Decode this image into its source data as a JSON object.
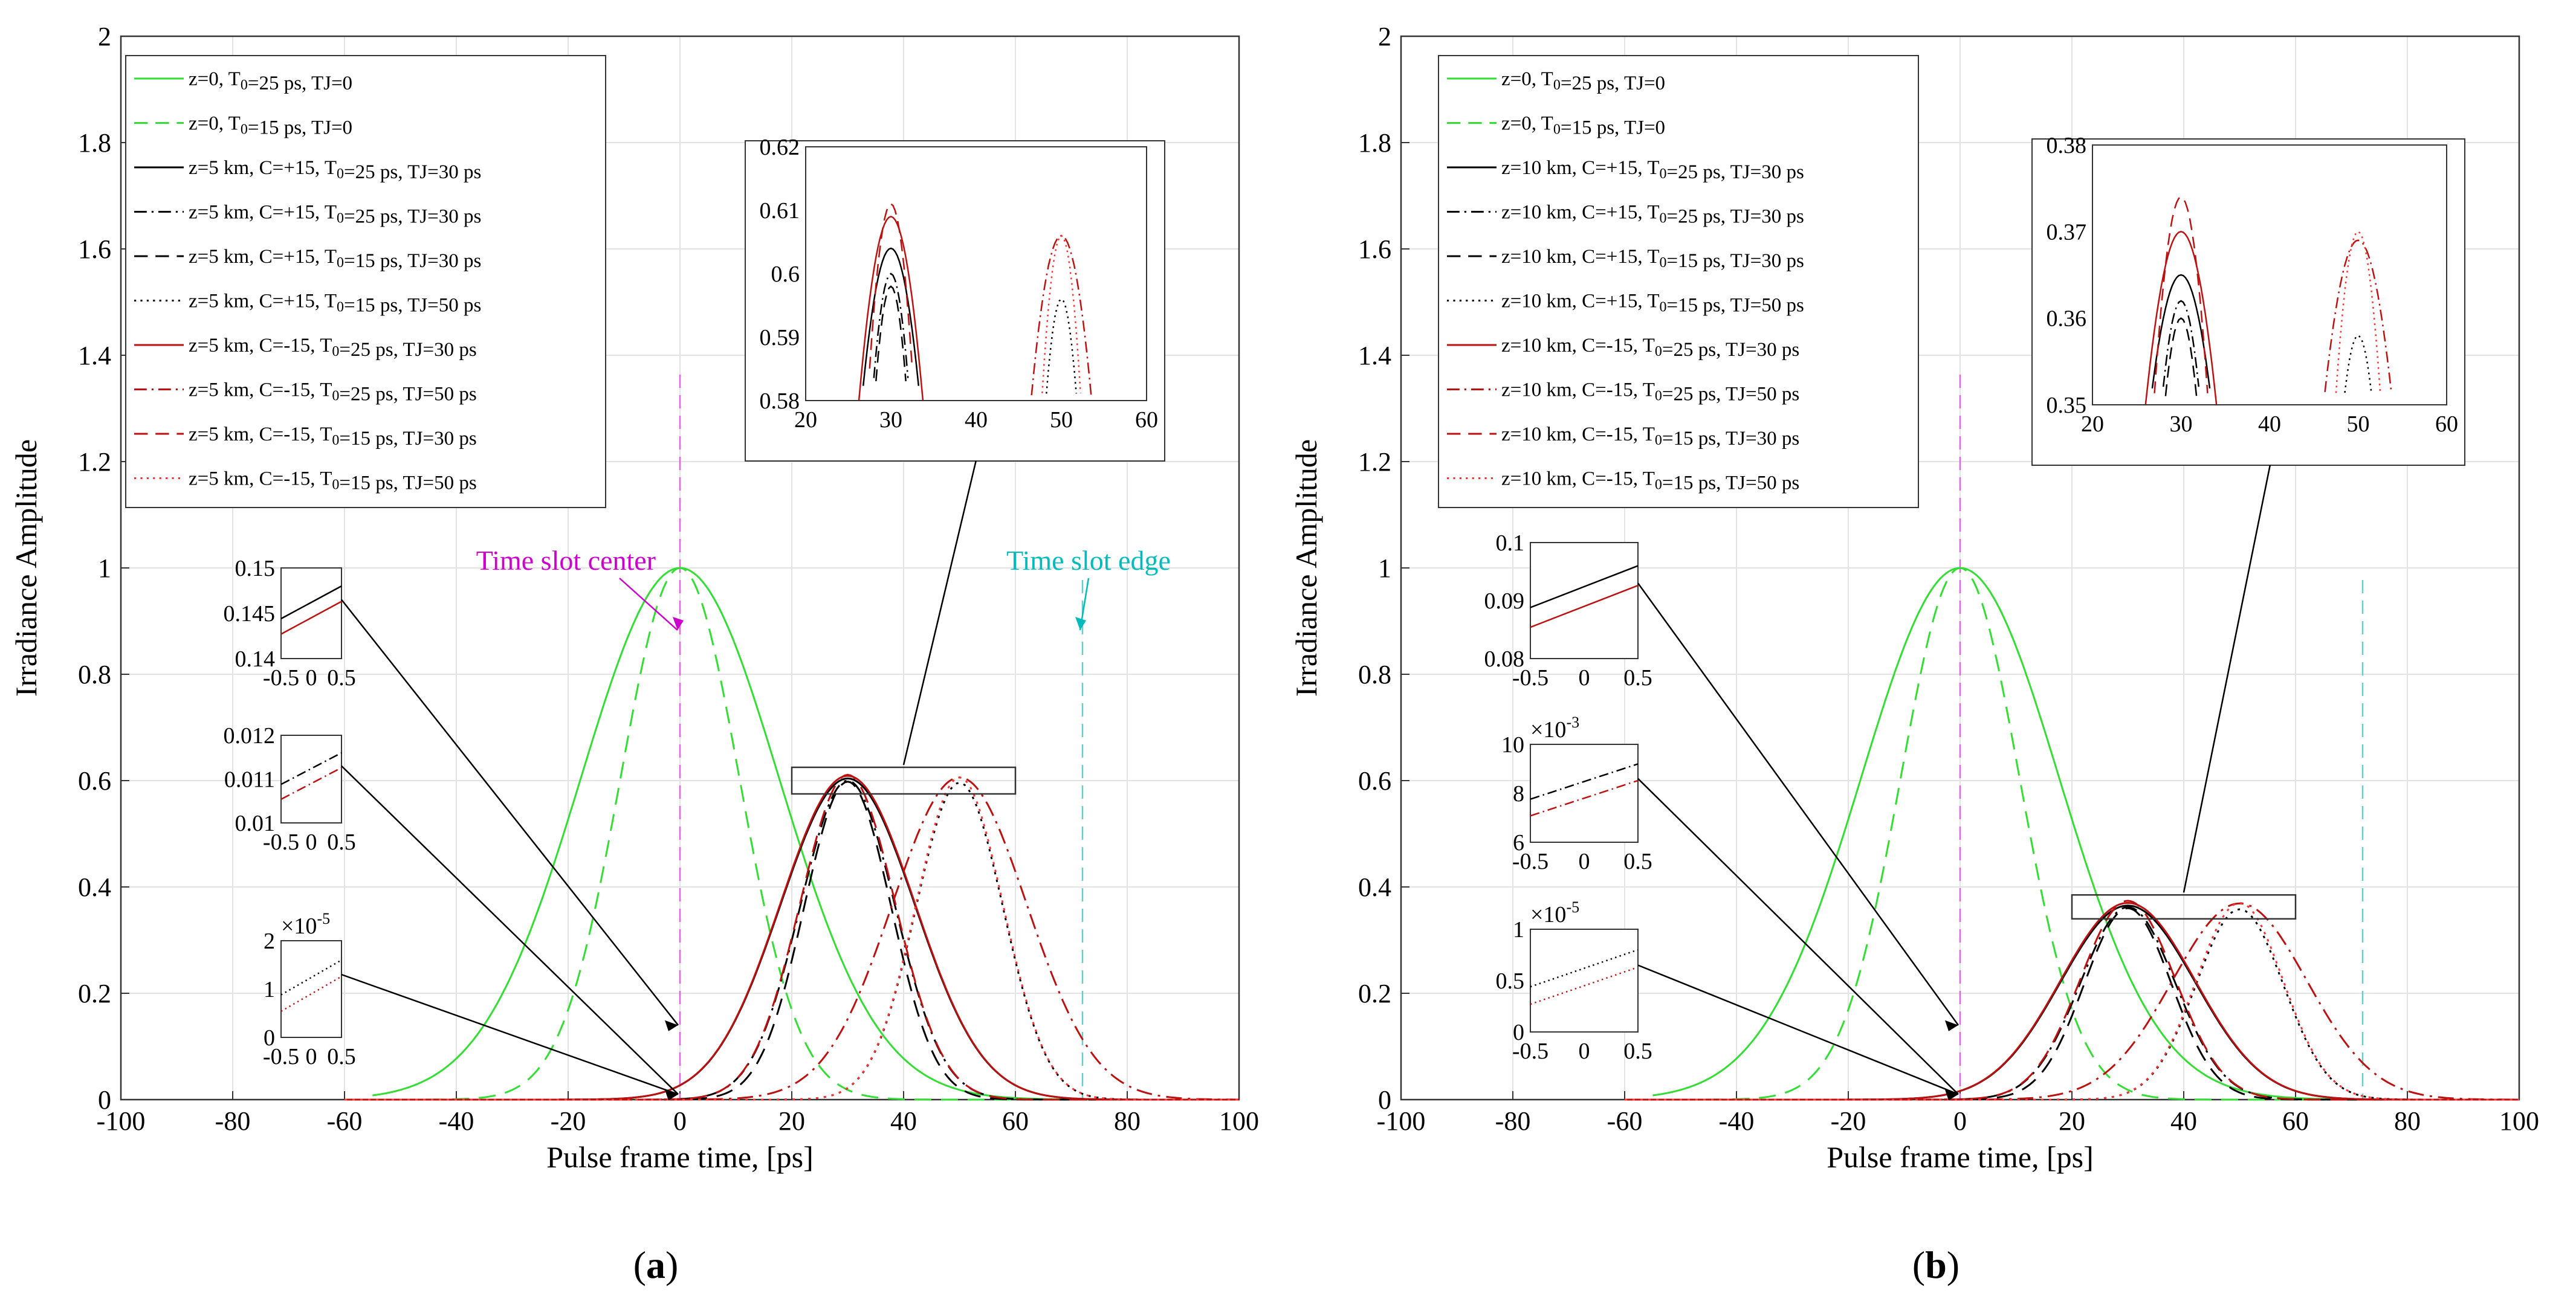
{
  "figure": {
    "captions": [
      "(a)",
      "(b)"
    ]
  },
  "chart_data": [
    {
      "type": "line",
      "panel": "a",
      "caption": "(a)",
      "xlabel": "Pulse frame time, [ps]",
      "ylabel": "Irradiance Amplitude",
      "xlim": [
        -100,
        100
      ],
      "ylim": [
        0,
        2
      ],
      "x_ticks": [
        "-100",
        "-80",
        "-60",
        "-40",
        "-20",
        "0",
        "20",
        "40",
        "60",
        "80",
        "100"
      ],
      "y_ticks": [
        "0",
        "0.2",
        "0.4",
        "0.6",
        "0.8",
        "1",
        "1.2",
        "1.4",
        "1.6",
        "1.8",
        "2"
      ],
      "grid": true,
      "legend_position": "top-left",
      "legend": [
        {
          "text": "z=0, T0=25 ps, TJ=0"
        },
        {
          "text": "z=0, T0=15 ps, TJ=0"
        },
        {
          "text": "z=5 km, C=+15, T0=25 ps, TJ=30 ps"
        },
        {
          "text": "z=5 km, C=+15, T0=25 ps, TJ=30 ps"
        },
        {
          "text": "z=5 km, C=+15, T0=15 ps, TJ=30 ps"
        },
        {
          "text": "z=5 km, C=+15, T0=15 ps, TJ=50 ps"
        },
        {
          "text": "z=5 km, C=-15, T0=25 ps, TJ=30 ps"
        },
        {
          "text": "z=5 km, C=-15, T0=25 ps, TJ=50 ps"
        },
        {
          "text": "z=5 km, C=-15, T0=15 ps, TJ=30 ps"
        },
        {
          "text": "z=5 km, C=-15, T0=15 ps, TJ=50 ps"
        }
      ],
      "series": [
        {
          "name": "z=0, T0=25 ps, TJ=0",
          "color": "#33dd33",
          "dash": "solid",
          "peak": 1.0,
          "center": 0,
          "width": 25,
          "x_min": -55
        },
        {
          "name": "z=0, T0=15 ps, TJ=0",
          "color": "#33dd33",
          "dash": "dash",
          "peak": 1.0,
          "center": 0,
          "width": 15,
          "x_min": -55
        },
        {
          "name": "z=5 km, C=+15, T0=25 ps, TJ=30 ps",
          "color": "#000000",
          "dash": "solid",
          "peak": 0.604,
          "center": 30,
          "width": 17
        },
        {
          "name": "z=5 km, C=+15, T0=25 ps, TJ=30 ps",
          "color": "#000000",
          "dash": "dashdot",
          "peak": 0.6,
          "center": 30,
          "width": 12
        },
        {
          "name": "z=5 km, C=+15, T0=15 ps, TJ=30 ps",
          "color": "#000000",
          "dash": "dash",
          "peak": 0.598,
          "center": 30,
          "width": 11
        },
        {
          "name": "z=5 km, C=+15, T0=15 ps, TJ=50 ps",
          "color": "#000000",
          "dash": "dot",
          "peak": 0.596,
          "center": 50,
          "width": 11
        },
        {
          "name": "z=5 km, C=-15, T0=25 ps, TJ=30 ps",
          "color": "#bb1111",
          "dash": "solid",
          "peak": 0.609,
          "center": 30,
          "width": 17
        },
        {
          "name": "z=5 km, C=-15, T0=25 ps, TJ=50 ps",
          "color": "#bb1111",
          "dash": "dashdot",
          "peak": 0.606,
          "center": 50,
          "width": 17
        },
        {
          "name": "z=5 km, C=-15, T0=15 ps, TJ=30 ps",
          "color": "#bb1111",
          "dash": "dash",
          "peak": 0.611,
          "center": 30,
          "width": 12
        },
        {
          "name": "z=5 km, C=-15, T0=15 ps, TJ=50 ps",
          "color": "#ff3333",
          "dash": "dot",
          "peak": 0.606,
          "center": 50,
          "width": 11
        }
      ],
      "annotations": [
        {
          "text": "Time slot center",
          "color": "#cc00cc",
          "x": 0
        },
        {
          "text": "Time slot edge",
          "color": "#00bbbb",
          "x": 72
        }
      ],
      "insets": [
        {
          "name": "zoom-top",
          "xlim": [
            20,
            60
          ],
          "ylim": [
            0.58,
            0.62
          ],
          "x_ticks": [
            "20",
            "30",
            "40",
            "50",
            "60"
          ],
          "y_ticks": [
            "0.58",
            "0.59",
            "0.6",
            "0.61",
            "0.62"
          ]
        },
        {
          "name": "zoom-1",
          "xlim": [
            -0.5,
            0.5
          ],
          "ylim": [
            0.14,
            0.15
          ],
          "x_ticks": [
            "-0.5",
            "0",
            "0.5"
          ],
          "y_ticks": [
            "0.14",
            "0.145",
            "0.15"
          ]
        },
        {
          "name": "zoom-2",
          "xlim": [
            -0.5,
            0.5
          ],
          "ylim": [
            0.01,
            0.012
          ],
          "x_ticks": [
            "-0.5",
            "0",
            "0.5"
          ],
          "y_ticks": [
            "0.01",
            "0.011",
            "0.012"
          ]
        },
        {
          "name": "zoom-3",
          "xlim": [
            -0.5,
            0.5
          ],
          "ylim": [
            0,
            2
          ],
          "x_ticks": [
            "-0.5",
            "0",
            "0.5"
          ],
          "y_ticks": [
            "0",
            "1",
            "2"
          ],
          "multiplier": "×10",
          "multiplier_exp": "-5"
        }
      ]
    },
    {
      "type": "line",
      "panel": "b",
      "caption": "(b)",
      "xlabel": "Pulse frame time, [ps]",
      "ylabel": "Irradiance Amplitude",
      "xlim": [
        -100,
        100
      ],
      "ylim": [
        0,
        2
      ],
      "x_ticks": [
        "-100",
        "-80",
        "-60",
        "-40",
        "-20",
        "0",
        "20",
        "40",
        "60",
        "80",
        "100"
      ],
      "y_ticks": [
        "0",
        "0.2",
        "0.4",
        "0.6",
        "0.8",
        "1",
        "1.2",
        "1.4",
        "1.6",
        "1.8",
        "2"
      ],
      "grid": true,
      "legend_position": "top-left",
      "legend": [
        {
          "text": "z=0, T0=25 ps, TJ=0"
        },
        {
          "text": "z=0, T0=15 ps, TJ=0"
        },
        {
          "text": "z=10 km, C=+15, T0=25 ps, TJ=30 ps"
        },
        {
          "text": "z=10 km, C=+15, T0=25 ps, TJ=30 ps"
        },
        {
          "text": "z=10 km, C=+15, T0=15 ps, TJ=30 ps"
        },
        {
          "text": "z=10 km, C=+15, T0=15 ps, TJ=50 ps"
        },
        {
          "text": "z=10 km, C=-15, T0=25 ps, TJ=30 ps"
        },
        {
          "text": "z=10 km, C=-15, T0=25 ps, TJ=50 ps"
        },
        {
          "text": "z=10 km, C=-15, T0=15 ps, TJ=30 ps"
        },
        {
          "text": "z=10 km, C=-15, T0=15 ps, TJ=50 ps"
        }
      ],
      "series": [
        {
          "name": "z=0, T0=25 ps, TJ=0",
          "color": "#33dd33",
          "dash": "solid",
          "peak": 1.0,
          "center": 0,
          "width": 25,
          "x_min": -55
        },
        {
          "name": "z=0, T0=15 ps, TJ=0",
          "color": "#33dd33",
          "dash": "dash",
          "peak": 1.0,
          "center": 0,
          "width": 15,
          "x_min": -55
        },
        {
          "name": "z=10 km, C=+15, T0=25 ps, TJ=30 ps",
          "color": "#000000",
          "dash": "solid",
          "peak": 0.365,
          "center": 30,
          "width": 17
        },
        {
          "name": "z=10 km, C=+15, T0=25 ps, TJ=30 ps",
          "color": "#000000",
          "dash": "dashdot",
          "peak": 0.362,
          "center": 30,
          "width": 12
        },
        {
          "name": "z=10 km, C=+15, T0=15 ps, TJ=30 ps",
          "color": "#000000",
          "dash": "dash",
          "peak": 0.36,
          "center": 30,
          "width": 11
        },
        {
          "name": "z=10 km, C=+15, T0=15 ps, TJ=50 ps",
          "color": "#000000",
          "dash": "dot",
          "peak": 0.358,
          "center": 50,
          "width": 11
        },
        {
          "name": "z=10 km, C=-15, T0=25 ps, TJ=30 ps",
          "color": "#bb1111",
          "dash": "solid",
          "peak": 0.37,
          "center": 30,
          "width": 17
        },
        {
          "name": "z=10 km, C=-15, T0=25 ps, TJ=50 ps",
          "color": "#bb1111",
          "dash": "dashdot",
          "peak": 0.369,
          "center": 50,
          "width": 17
        },
        {
          "name": "z=10 km, C=-15, T0=15 ps, TJ=30 ps",
          "color": "#bb1111",
          "dash": "dash",
          "peak": 0.374,
          "center": 30,
          "width": 12
        },
        {
          "name": "z=10 km, C=-15, T0=15 ps, TJ=50 ps",
          "color": "#ff3333",
          "dash": "dot",
          "peak": 0.37,
          "center": 50,
          "width": 11
        }
      ],
      "annotations": [],
      "insets": [
        {
          "name": "zoom-top",
          "xlim": [
            20,
            60
          ],
          "ylim": [
            0.35,
            0.38
          ],
          "x_ticks": [
            "20",
            "30",
            "40",
            "50",
            "60"
          ],
          "y_ticks": [
            "0.35",
            "0.36",
            "0.37",
            "0.38"
          ]
        },
        {
          "name": "zoom-1",
          "xlim": [
            -0.5,
            0.5
          ],
          "ylim": [
            0.08,
            0.1
          ],
          "x_ticks": [
            "-0.5",
            "0",
            "0.5"
          ],
          "y_ticks": [
            "0.08",
            "0.09",
            "0.1"
          ]
        },
        {
          "name": "zoom-2",
          "xlim": [
            -0.5,
            0.5
          ],
          "ylim": [
            6,
            10
          ],
          "x_ticks": [
            "-0.5",
            "0",
            "0.5"
          ],
          "y_ticks": [
            "6",
            "8",
            "10"
          ],
          "multiplier": "×10",
          "multiplier_exp": "-3"
        },
        {
          "name": "zoom-3",
          "xlim": [
            -0.5,
            0.5
          ],
          "ylim": [
            0,
            1
          ],
          "x_ticks": [
            "-0.5",
            "0",
            "0.5"
          ],
          "y_ticks": [
            "0",
            "0.5",
            "1"
          ],
          "multiplier": "×10",
          "multiplier_exp": "-5"
        }
      ]
    }
  ]
}
